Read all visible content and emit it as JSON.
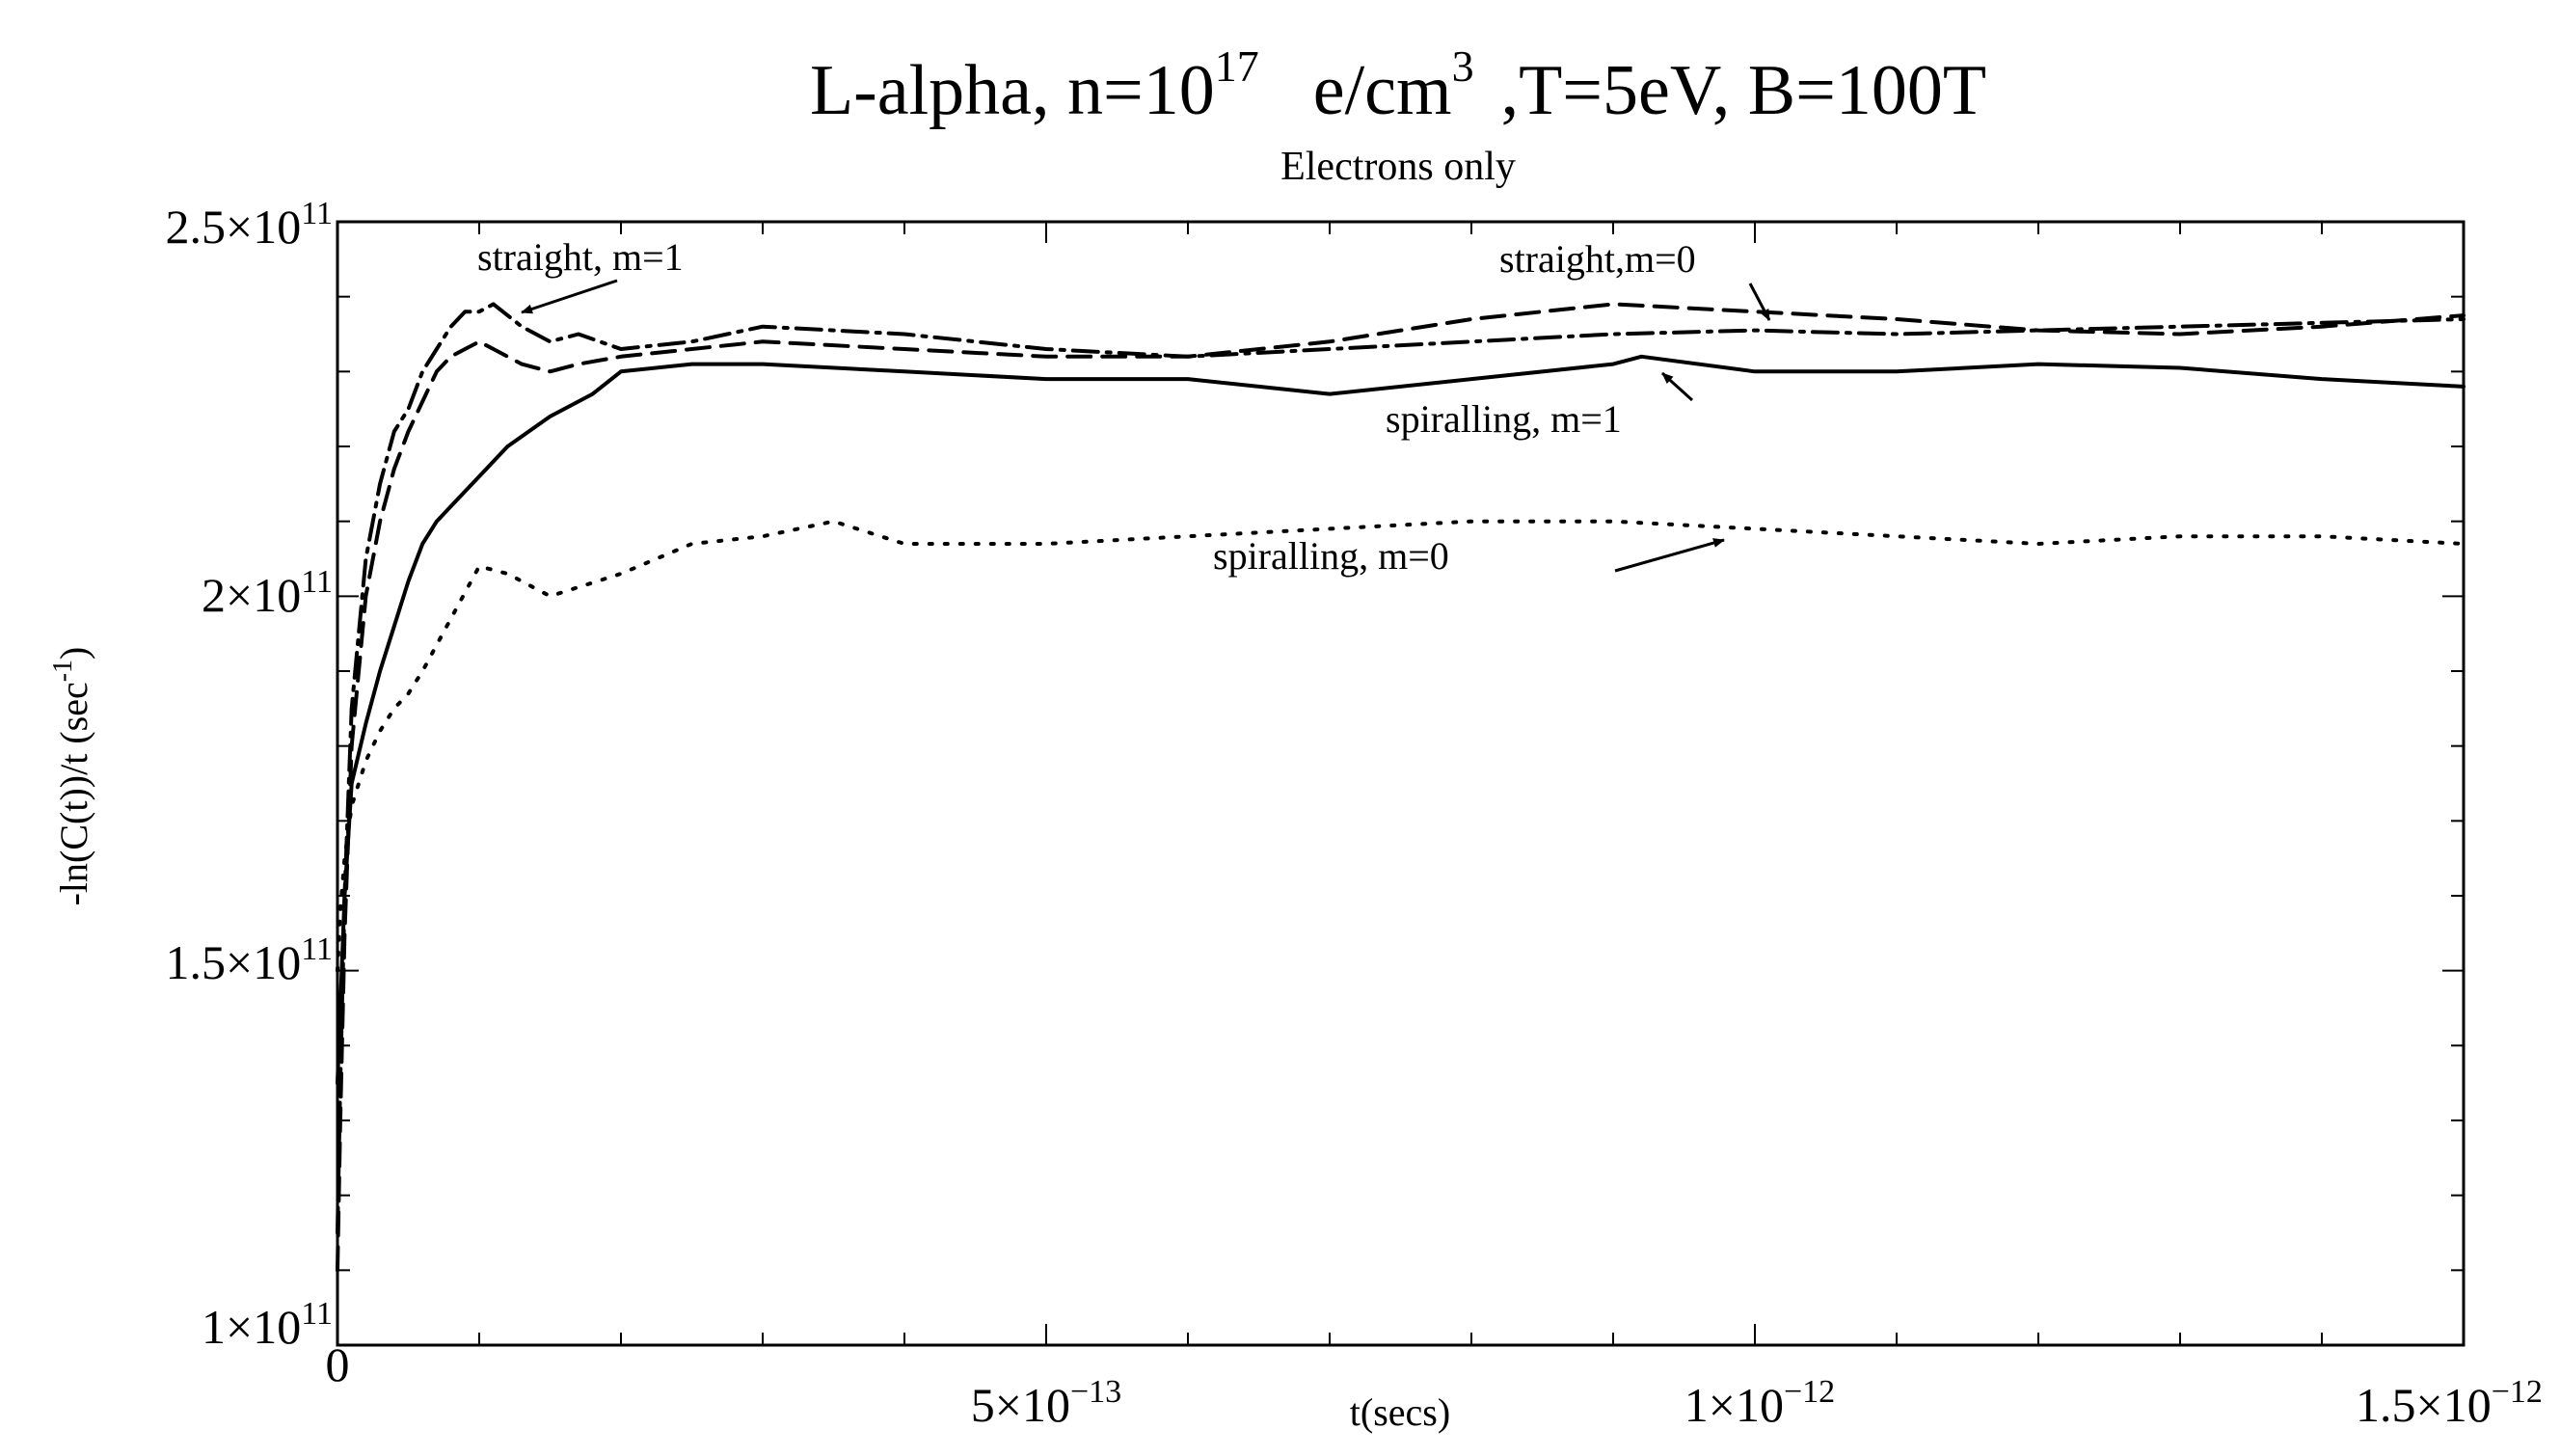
{
  "chart_data": {
    "type": "line",
    "title_parts": {
      "prefix": "L-alpha, n=10",
      "n_exponent": "17",
      "unit": "e/cm",
      "unit_exponent": "3",
      "suffix": ",T=5eV, B=100T"
    },
    "subtitle": "Electrons only",
    "xlabel": "t(secs)",
    "ylabel": {
      "main": "-ln(C(t))/t (sec",
      "exponent": "-1",
      "close": ")"
    },
    "xlim": [
      0,
      1.5e-12
    ],
    "ylim": [
      100000000000.0,
      250000000000.0
    ],
    "grid": false,
    "x_ticks": [
      {
        "value": 0,
        "label": "0"
      },
      {
        "value": 5e-13,
        "mantissa": "5×10",
        "exponent": "−13"
      },
      {
        "value": 1e-12,
        "mantissa": "1×10",
        "exponent": "−12"
      },
      {
        "value": 1.5e-12,
        "mantissa": "1.5×10",
        "exponent": "−12"
      }
    ],
    "y_ticks": [
      {
        "value": 100000000000.0,
        "mantissa": "1×10",
        "exponent": "11"
      },
      {
        "value": 150000000000.0,
        "mantissa": "1.5×10",
        "exponent": "11"
      },
      {
        "value": 200000000000.0,
        "mantissa": "2×10",
        "exponent": "11"
      },
      {
        "value": 250000000000.0,
        "mantissa": "2.5×10",
        "exponent": "11"
      }
    ],
    "series": [
      {
        "name": "straight, m=1",
        "style": "dash-dot",
        "x": [
          0,
          2e-15,
          5e-15,
          1e-14,
          2e-14,
          3e-14,
          4e-14,
          5e-14,
          6e-14,
          7e-14,
          8e-14,
          9e-14,
          1e-13,
          1.1e-13,
          1.3e-13,
          1.5e-13,
          1.7e-13,
          2e-13,
          2.5e-13,
          3e-13,
          4e-13,
          5e-13,
          6e-13,
          7e-13,
          8e-13,
          9e-13,
          1e-12,
          1.1e-12,
          1.2e-12,
          1.3e-12,
          1.4e-12,
          1.5e-12
        ],
        "y": [
          115000000000.0,
          135000000000.0,
          160000000000.0,
          185000000000.0,
          205000000000.0,
          215000000000.0,
          222000000000.0,
          225000000000.0,
          230000000000.0,
          233000000000.0,
          236000000000.0,
          238000000000.0,
          238000000000.0,
          239000000000.0,
          236000000000.0,
          234000000000.0,
          235000000000.0,
          233000000000.0,
          234000000000.0,
          236000000000.0,
          235000000000.0,
          233000000000.0,
          232000000000.0,
          233000000000.0,
          234000000000.0,
          235000000000.0,
          235500000000.0,
          235000000000.0,
          235500000000.0,
          236000000000.0,
          236500000000.0,
          237000000000.0
        ]
      },
      {
        "name": "straight,m=0",
        "style": "dashed",
        "x": [
          0,
          2e-15,
          5e-15,
          1e-14,
          2e-14,
          3e-14,
          4e-14,
          5e-14,
          6e-14,
          7e-14,
          8e-14,
          9e-14,
          1e-13,
          1.1e-13,
          1.3e-13,
          1.5e-13,
          1.7e-13,
          2e-13,
          2.5e-13,
          3e-13,
          4e-13,
          5e-13,
          6e-13,
          7e-13,
          8e-13,
          9e-13,
          1e-12,
          1.1e-12,
          1.2e-12,
          1.3e-12,
          1.4e-12,
          1.5e-12
        ],
        "y": [
          110000000000.0,
          130000000000.0,
          155000000000.0,
          180000000000.0,
          200000000000.0,
          210000000000.0,
          217000000000.0,
          222000000000.0,
          226000000000.0,
          230000000000.0,
          232000000000.0,
          233000000000.0,
          234000000000.0,
          233000000000.0,
          231000000000.0,
          230000000000.0,
          231000000000.0,
          232000000000.0,
          233000000000.0,
          234000000000.0,
          233000000000.0,
          232000000000.0,
          232000000000.0,
          234000000000.0,
          237000000000.0,
          239000000000.0,
          238000000000.0,
          237000000000.0,
          235500000000.0,
          235000000000.0,
          236000000000.0,
          237500000000.0
        ]
      },
      {
        "name": "spiralling, m=1",
        "style": "solid",
        "x": [
          0,
          2e-15,
          5e-15,
          1e-14,
          2e-14,
          3e-14,
          4e-14,
          5e-14,
          6e-14,
          7e-14,
          8e-14,
          1e-13,
          1.2e-13,
          1.5e-13,
          1.8e-13,
          2e-13,
          2.5e-13,
          3e-13,
          4e-13,
          5e-13,
          6e-13,
          7e-13,
          8e-13,
          9e-13,
          9.2e-13,
          1e-12,
          1.1e-12,
          1.2e-12,
          1.3e-12,
          1.4e-12,
          1.5e-12
        ],
        "y": [
          135000000000.0,
          145000000000.0,
          160000000000.0,
          175000000000.0,
          183000000000.0,
          190000000000.0,
          196000000000.0,
          202000000000.0,
          207000000000.0,
          210000000000.0,
          212000000000.0,
          216000000000.0,
          220000000000.0,
          224000000000.0,
          227000000000.0,
          230000000000.0,
          231000000000.0,
          231000000000.0,
          230000000000.0,
          229000000000.0,
          229000000000.0,
          227000000000.0,
          229000000000.0,
          231000000000.0,
          232000000000.0,
          230000000000.0,
          230000000000.0,
          231000000000.0,
          230500000000.0,
          229000000000.0,
          228000000000.0
        ]
      },
      {
        "name": "spiralling, m=0",
        "style": "dotted",
        "x": [
          0,
          2e-15,
          5e-15,
          1e-14,
          2e-14,
          3e-14,
          4e-14,
          5e-14,
          6e-14,
          8e-14,
          1e-13,
          1.2e-13,
          1.5e-13,
          2e-13,
          2.5e-13,
          3e-13,
          3.5e-13,
          4e-13,
          5e-13,
          6e-13,
          7e-13,
          8e-13,
          9e-13,
          1e-12,
          1.1e-12,
          1.2e-12,
          1.3e-12,
          1.4e-12,
          1.5e-12
        ],
        "y": [
          150000000000.0,
          158000000000.0,
          165000000000.0,
          172000000000.0,
          178000000000.0,
          182000000000.0,
          185000000000.0,
          187000000000.0,
          190000000000.0,
          197000000000.0,
          204000000000.0,
          203000000000.0,
          200000000000.0,
          203000000000.0,
          207000000000.0,
          208000000000.0,
          210000000000.0,
          207000000000.0,
          207000000000.0,
          208000000000.0,
          209000000000.0,
          210000000000.0,
          210000000000.0,
          209000000000.0,
          208000000000.0,
          207000000000.0,
          208000000000.0,
          208000000000.0,
          207000000000.0
        ]
      }
    ],
    "annotations": [
      {
        "text": "straight, m=1",
        "series": "straight, m=1",
        "point_x": 1.2e-13,
        "point_y": 238000000000.0
      },
      {
        "text": "straight,m=0",
        "series": "straight,m=0",
        "point_x": 1.01e-12,
        "point_y": 237000000000.0
      },
      {
        "text": "spiralling, m=1",
        "series": "spiralling, m=1",
        "point_x": 9.1e-13,
        "point_y": 232000000000.0
      },
      {
        "text": "spiralling, m=0",
        "series": "spiralling, m=0",
        "point_x": 9.8e-13,
        "point_y": 209000000000.0
      }
    ]
  }
}
